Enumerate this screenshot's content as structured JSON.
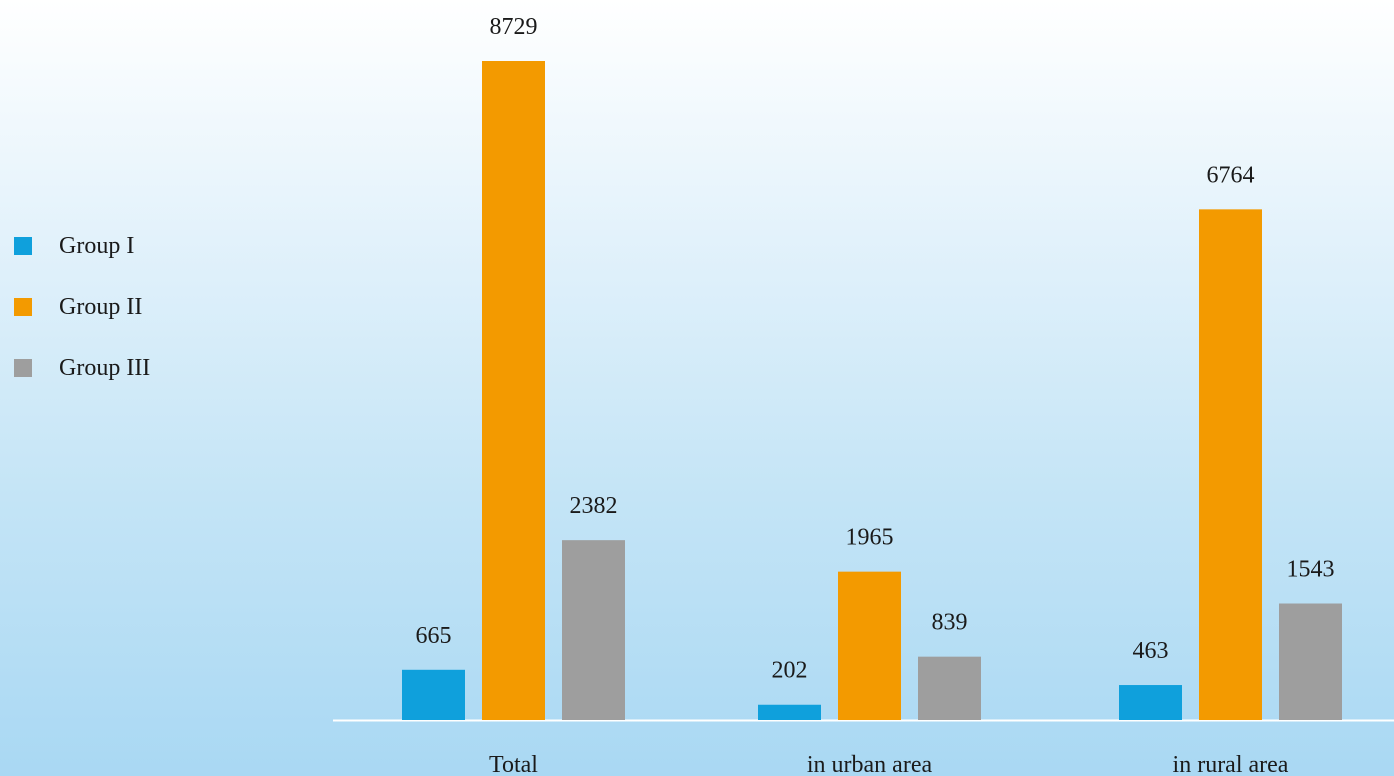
{
  "chart_data": {
    "type": "bar",
    "categories": [
      "Total",
      "in urban area",
      "in rural area"
    ],
    "series": [
      {
        "name": "Group I",
        "values": [
          665,
          202,
          463
        ],
        "color": "#0fa0dc"
      },
      {
        "name": "Group II",
        "values": [
          8729,
          1965,
          6764
        ],
        "color": "#f39a00"
      },
      {
        "name": "Group III",
        "values": [
          2382,
          839,
          1543
        ],
        "color": "#9e9e9e"
      }
    ],
    "title": "",
    "xlabel": "",
    "ylabel": "",
    "ylim": [
      0,
      8729
    ],
    "grid": false,
    "legend_position": "left",
    "data_labels": true
  }
}
